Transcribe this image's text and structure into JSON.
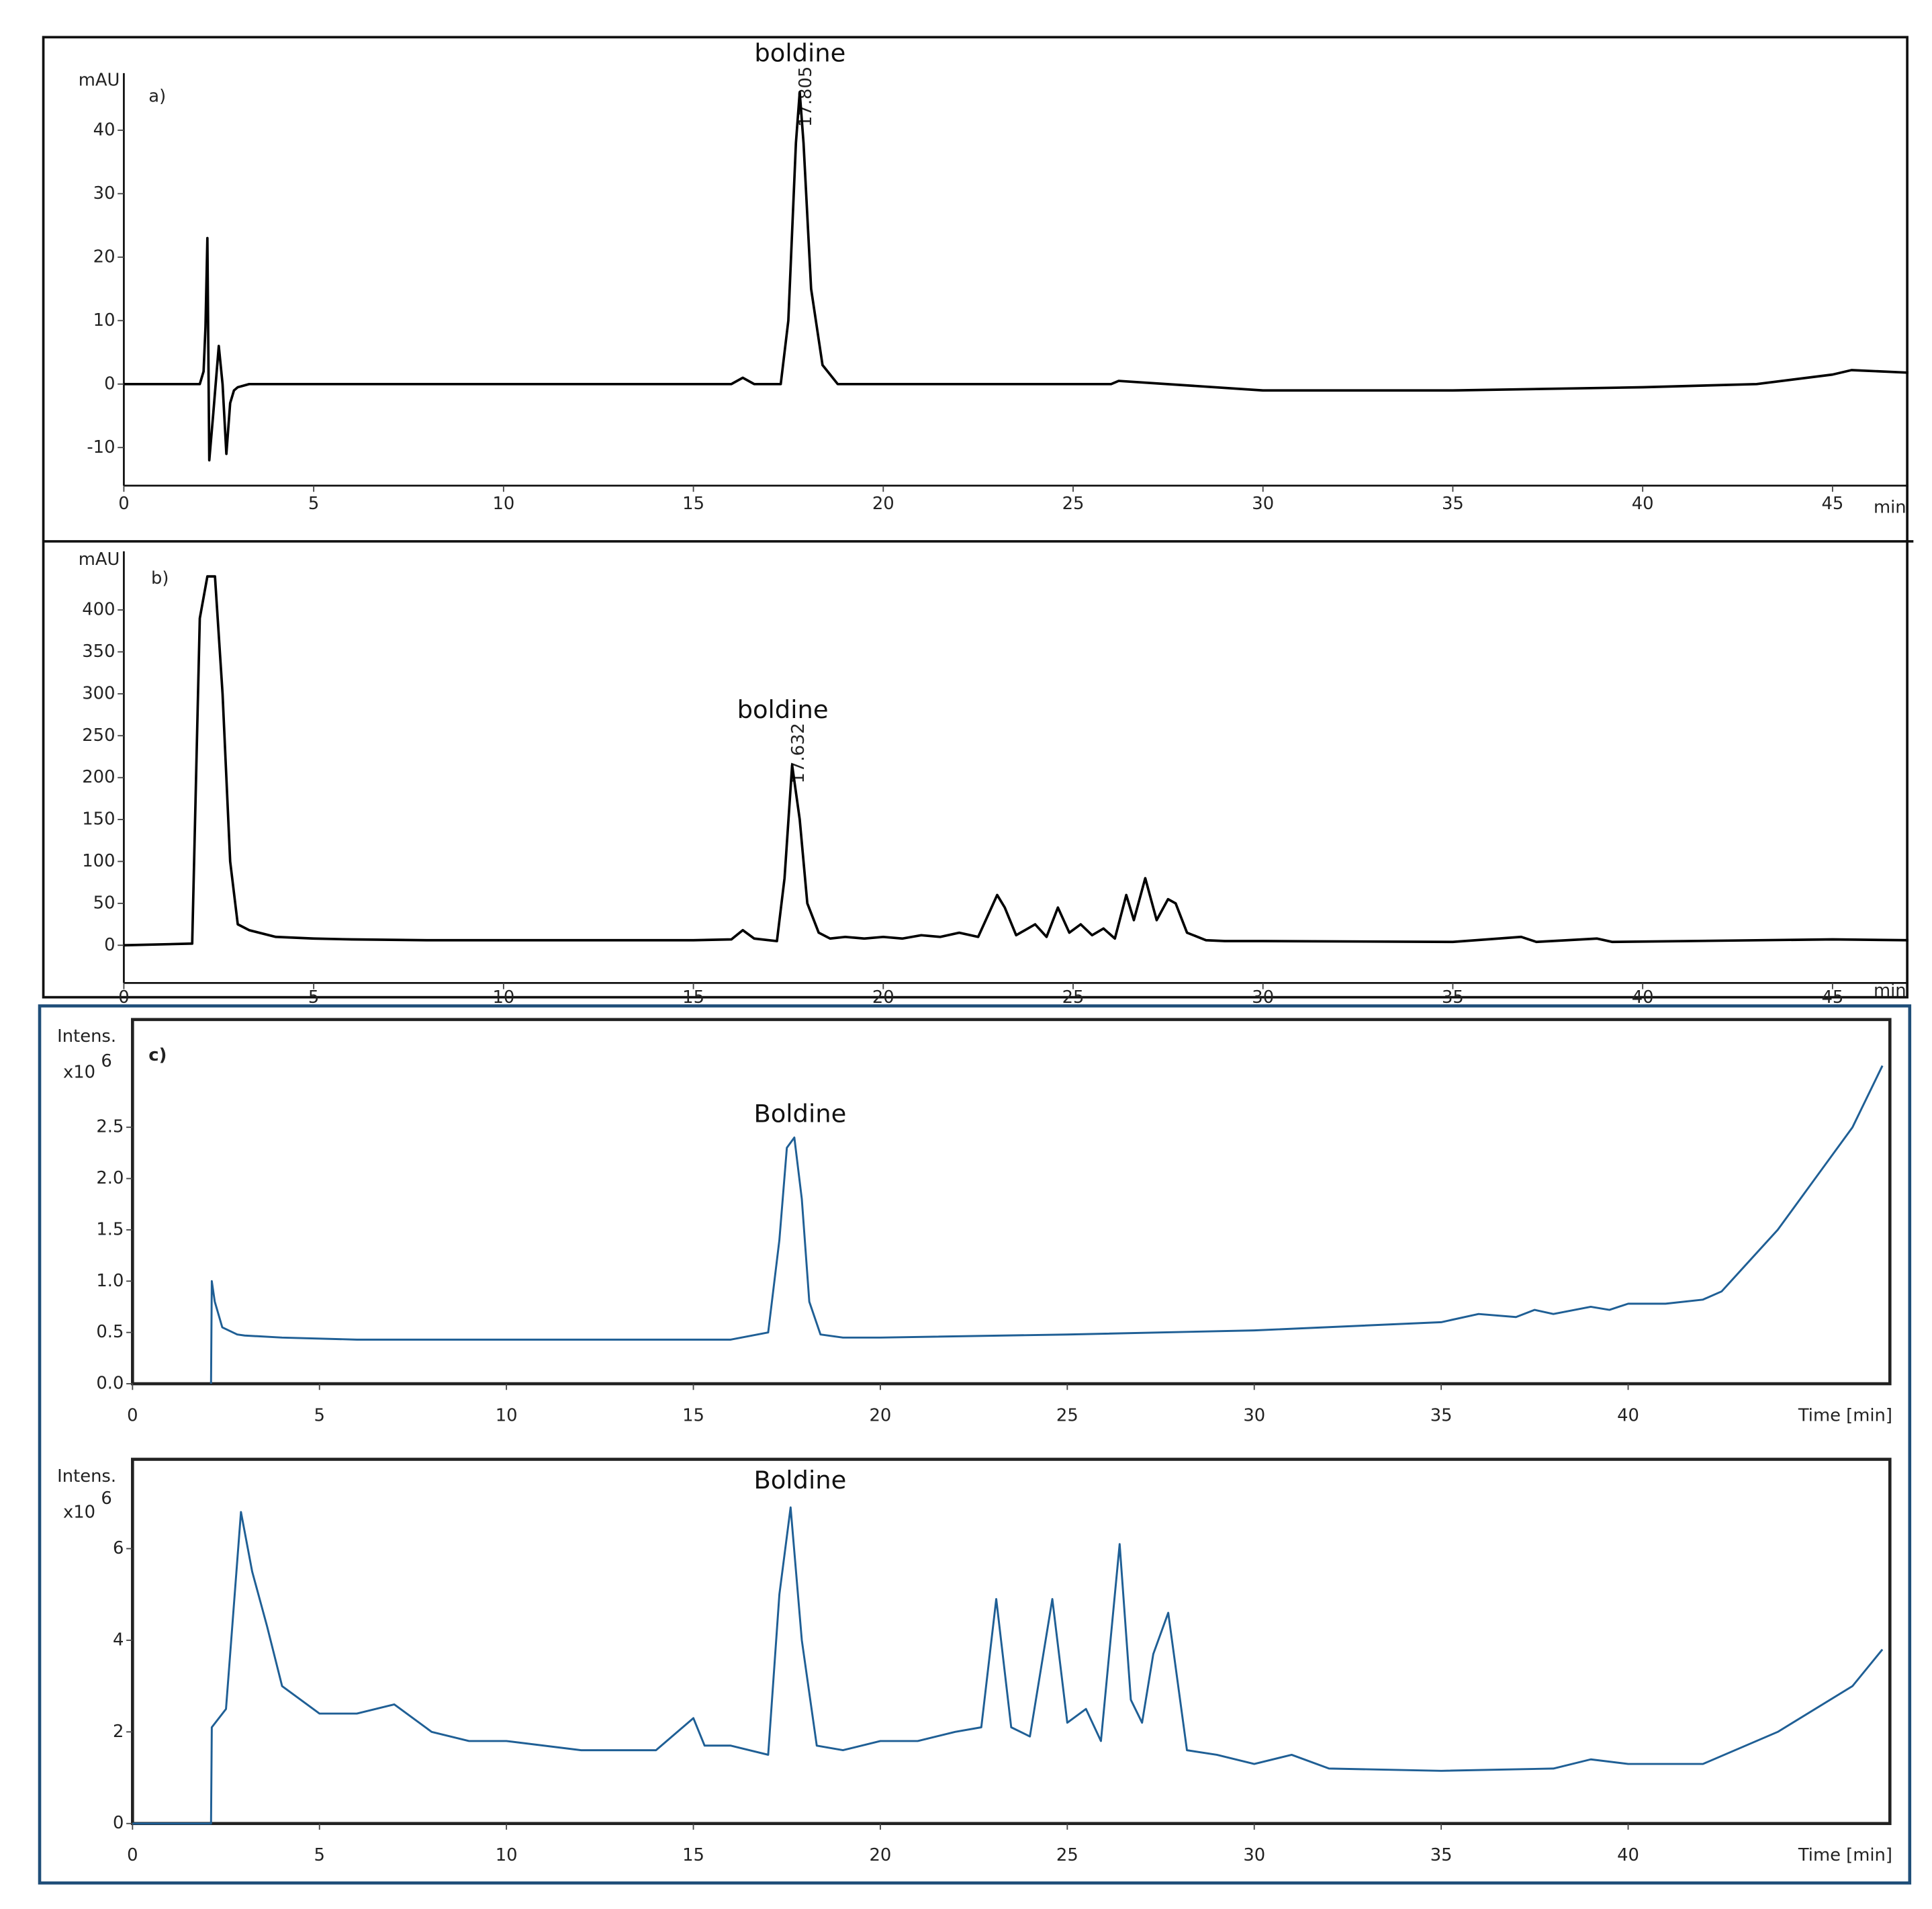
{
  "chart_data": [
    {
      "type": "line",
      "panel_label": "a)",
      "ylabel": "mAU",
      "xlabel": "min",
      "annotations": [
        "boldine",
        "17.805"
      ],
      "color": "#000000",
      "x": [
        0,
        2.0,
        2.1,
        2.15,
        2.2,
        2.25,
        2.35,
        2.5,
        2.6,
        2.7,
        2.8,
        2.9,
        3.0,
        3.3,
        4,
        8,
        12,
        16,
        16.3,
        16.6,
        17.3,
        17.5,
        17.7,
        17.8,
        17.9,
        18.1,
        18.4,
        18.8,
        20,
        26,
        26.2,
        30,
        35,
        40,
        43,
        45,
        45.5,
        47
      ],
      "values": [
        0,
        0,
        2,
        9,
        23,
        -12,
        -5,
        6,
        0,
        -11,
        -3,
        -1,
        -0.5,
        0,
        0,
        0,
        0,
        0,
        1,
        0,
        0,
        10,
        38,
        46,
        38,
        15,
        3,
        0,
        0,
        0,
        0.5,
        -1,
        -1,
        -0.5,
        0,
        1.5,
        2.2,
        1.8
      ],
      "xlim": [
        0,
        47
      ],
      "xticks": [
        0,
        5,
        10,
        15,
        20,
        25,
        30,
        35,
        40,
        45
      ],
      "ylim": [
        -16,
        49
      ],
      "yticks": [
        -10,
        0,
        10,
        20,
        30,
        40
      ]
    },
    {
      "type": "line",
      "panel_label": "b)",
      "ylabel": "mAU",
      "xlabel": "min",
      "annotations": [
        "boldine",
        "17.632"
      ],
      "color": "#000000",
      "x": [
        0,
        1.8,
        2.0,
        2.2,
        2.4,
        2.6,
        2.8,
        3.0,
        3.3,
        4,
        5,
        6,
        8,
        10,
        12,
        14,
        15,
        16,
        16.3,
        16.6,
        17.2,
        17.4,
        17.6,
        17.8,
        18.0,
        18.3,
        18.6,
        19,
        19.5,
        20,
        20.5,
        21,
        21.5,
        22,
        22.5,
        23,
        23.2,
        23.5,
        24,
        24.3,
        24.6,
        24.9,
        25.2,
        25.5,
        25.8,
        26.1,
        26.4,
        26.6,
        26.9,
        27.2,
        27.5,
        27.7,
        28,
        28.5,
        29,
        30,
        35,
        36.8,
        37.2,
        38.8,
        39.2,
        45,
        47
      ],
      "values": [
        0,
        2,
        390,
        440,
        440,
        300,
        100,
        25,
        18,
        10,
        8,
        7,
        6,
        6,
        6,
        6,
        6,
        7,
        18,
        8,
        5,
        80,
        215,
        150,
        50,
        15,
        8,
        10,
        8,
        10,
        8,
        12,
        10,
        15,
        10,
        60,
        45,
        12,
        25,
        10,
        45,
        15,
        25,
        12,
        20,
        8,
        60,
        30,
        80,
        30,
        55,
        50,
        15,
        6,
        5,
        5,
        4,
        10,
        4,
        8,
        4,
        7,
        6
      ],
      "xlim": [
        0,
        47
      ],
      "xticks": [
        0,
        5,
        10,
        15,
        20,
        25,
        30,
        35,
        40,
        45
      ],
      "ylim": [
        -45,
        470
      ],
      "yticks": [
        0,
        50,
        100,
        150,
        200,
        250,
        300,
        350,
        400
      ]
    },
    {
      "type": "line",
      "panel_label": "c)",
      "ylabel": "Intens.",
      "y_multiplier": "x10",
      "y_exponent": "6",
      "xlabel": "Time [min]",
      "annotations": [
        "Boldine"
      ],
      "color": "#1f5f95",
      "x": [
        2.1,
        2.12,
        2.2,
        2.4,
        2.8,
        3,
        4,
        6,
        8,
        10,
        12,
        14,
        16,
        17,
        17.3,
        17.5,
        17.7,
        17.9,
        18.1,
        18.4,
        19,
        20,
        25,
        30,
        35,
        36,
        37,
        37.5,
        38,
        39,
        39.5,
        40,
        41,
        42,
        42.5,
        43,
        44,
        45,
        46,
        46.8
      ],
      "values": [
        0,
        1.0,
        0.8,
        0.55,
        0.48,
        0.47,
        0.45,
        0.43,
        0.43,
        0.43,
        0.43,
        0.43,
        0.43,
        0.5,
        1.4,
        2.3,
        2.4,
        1.8,
        0.8,
        0.48,
        0.45,
        0.45,
        0.48,
        0.52,
        0.6,
        0.68,
        0.65,
        0.72,
        0.68,
        0.75,
        0.72,
        0.78,
        0.78,
        0.82,
        0.9,
        1.1,
        1.5,
        2.0,
        2.5,
        3.1
      ],
      "xlim": [
        0,
        47
      ],
      "xticks": [
        0,
        5,
        10,
        15,
        20,
        25,
        30,
        35,
        40
      ],
      "ylim": [
        0,
        3.55
      ],
      "yticks": [
        {
          "value": 0,
          "label": "0.0"
        },
        0.5,
        {
          "value": 1,
          "label": "1.0"
        },
        1.5,
        {
          "value": 2,
          "label": "2.0"
        },
        2.5
      ]
    },
    {
      "type": "line",
      "ylabel": "Intens.",
      "y_multiplier": "x10",
      "y_exponent": "6",
      "xlabel": "Time [min]",
      "annotations": [
        "Boldine"
      ],
      "color": "#1f5f95",
      "x": [
        0,
        2.1,
        2.12,
        2.5,
        2.9,
        3.2,
        3.6,
        4,
        5,
        6,
        7,
        8,
        9,
        10,
        12,
        14,
        15,
        15.3,
        16,
        17,
        17.3,
        17.6,
        17.9,
        18.3,
        19,
        20,
        21,
        22,
        22.7,
        23.1,
        23.5,
        24,
        24.6,
        25,
        25.5,
        25.9,
        26.4,
        26.7,
        27,
        27.3,
        27.7,
        28.2,
        29,
        30,
        31,
        32,
        35,
        38,
        39,
        40,
        42,
        44,
        46,
        46.8
      ],
      "values": [
        0,
        0,
        2.1,
        2.5,
        6.8,
        5.5,
        4.3,
        3,
        2.4,
        2.4,
        2.6,
        2,
        1.8,
        1.8,
        1.6,
        1.6,
        2.3,
        1.7,
        1.7,
        1.5,
        5,
        6.9,
        4,
        1.7,
        1.6,
        1.8,
        1.8,
        2,
        2.1,
        4.9,
        2.1,
        1.9,
        4.9,
        2.2,
        2.5,
        1.8,
        6.1,
        2.7,
        2.2,
        3.7,
        4.6,
        1.6,
        1.5,
        1.3,
        1.5,
        1.2,
        1.15,
        1.2,
        1.4,
        1.3,
        1.3,
        2.0,
        3.0,
        3.8
      ],
      "xlim": [
        0,
        47
      ],
      "xticks": [
        0,
        5,
        10,
        15,
        20,
        25,
        30,
        35,
        40
      ],
      "ylim": [
        0,
        7.95
      ],
      "yticks": [
        0,
        2,
        4,
        6
      ]
    }
  ]
}
